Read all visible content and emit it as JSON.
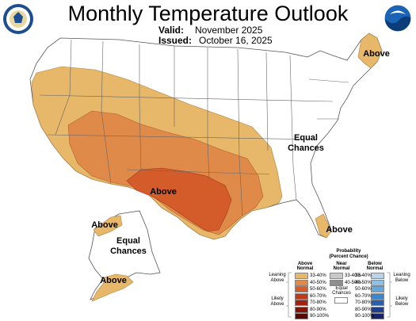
{
  "header": {
    "title": "Monthly Temperature Outlook",
    "valid_label": "Valid:",
    "valid_value": "November 2025",
    "issued_label": "Issued:",
    "issued_value": "October 16, 2025"
  },
  "logos": {
    "left": "commerce-department-seal",
    "right": "noaa-logo"
  },
  "map": {
    "labels": {
      "above_northeast": "Above",
      "above_south": "Above",
      "above_florida": "Above",
      "above_alaska_west": "Above",
      "above_alaska_south": "Above",
      "equal_chances_east_1": "Equal",
      "equal_chances_east_2": "Chances",
      "equal_chances_alaska_1": "Equal",
      "equal_chances_alaska_2": "Chances"
    },
    "colors": {
      "above_33_40": "#e7b76a",
      "above_40_50": "#e08a4a",
      "above_50_60": "#d45b2a",
      "land": "#ffffff",
      "border": "#555555"
    }
  },
  "legend": {
    "title_1": "Probability",
    "title_2": "(Percent Chance)",
    "col_above_1": "Above",
    "col_above_2": "Normal",
    "col_near_1": "Near",
    "col_near_2": "Normal",
    "col_below_1": "Below",
    "col_below_2": "Normal",
    "equal_1": "Equal",
    "equal_2": "Chances",
    "leaning_above_1": "Leaning",
    "leaning_above_2": "Above",
    "likely_above_1": "Likely",
    "likely_above_2": "Above",
    "leaning_below_1": "Leaning",
    "leaning_below_2": "Below",
    "likely_below_1": "Likely",
    "likely_below_2": "Below",
    "above_bins": [
      "33-40%",
      "40-50%",
      "50-60%",
      "60-70%",
      "70-80%",
      "80-90%",
      "90-100%"
    ],
    "above_colors": [
      "#e7b76a",
      "#e08a4a",
      "#d45b2a",
      "#c03a1a",
      "#a3210f",
      "#80150a",
      "#5a0a05"
    ],
    "near_bins": [
      "33-40%",
      "40-50%"
    ],
    "near_colors": [
      "#c8c8c8",
      "#8e8e8e"
    ],
    "below_bins": [
      "33-40%",
      "40-50%",
      "50-60%",
      "60-70%",
      "70-80%",
      "80-90%",
      "90-100%"
    ],
    "below_colors": [
      "#b9d3ec",
      "#90bfe4",
      "#67a8dc",
      "#3b86cf",
      "#2a5fae",
      "#1f3f8c",
      "#14236a"
    ]
  }
}
